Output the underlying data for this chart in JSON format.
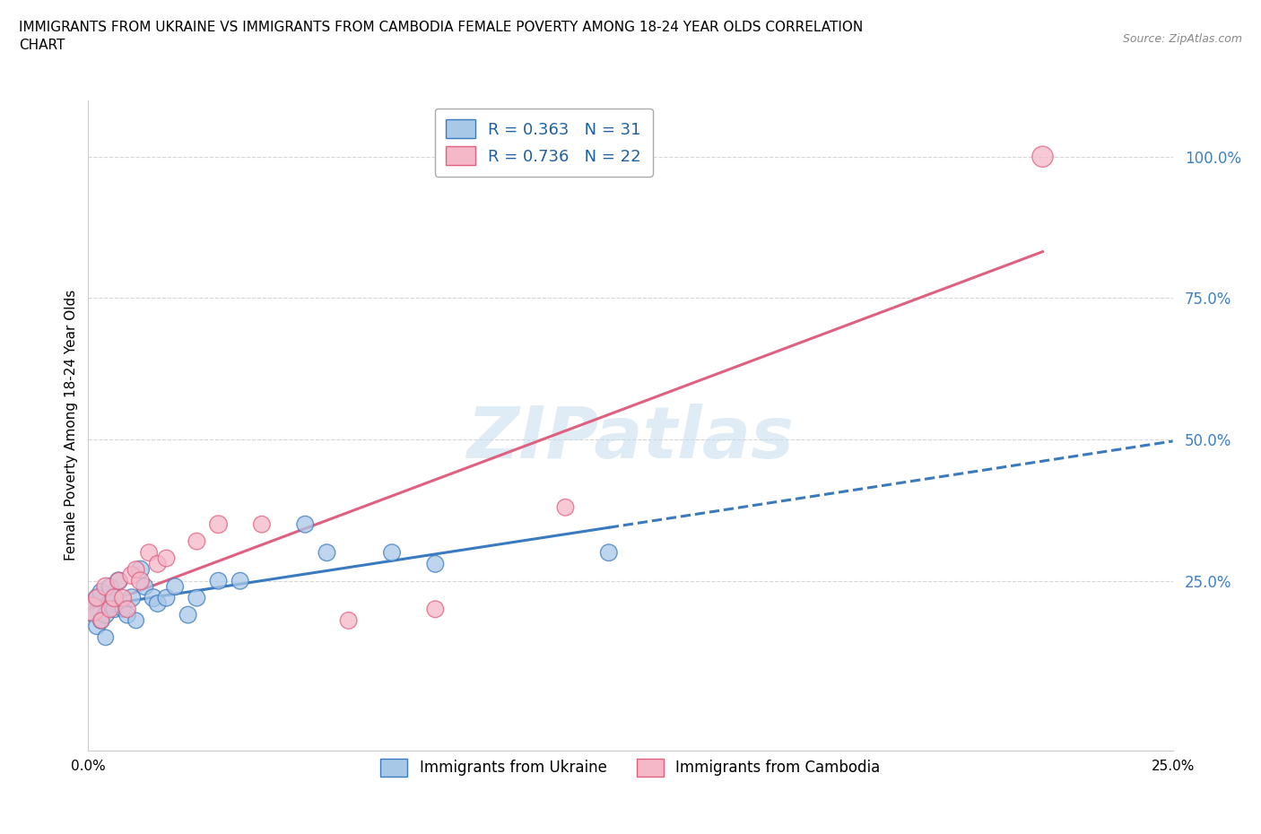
{
  "title": "IMMIGRANTS FROM UKRAINE VS IMMIGRANTS FROM CAMBODIA FEMALE POVERTY AMONG 18-24 YEAR OLDS CORRELATION\nCHART",
  "source_text": "Source: ZipAtlas.com",
  "ylabel": "Female Poverty Among 18-24 Year Olds",
  "watermark": "ZIPatlas",
  "ukraine_color": "#a8c8e8",
  "cambodia_color": "#f4b8c8",
  "ukraine_line_color": "#3a7abf",
  "cambodia_line_color": "#e06080",
  "legend_text_color": "#2060a0",
  "ytick_color": "#4080c0",
  "R_ukraine": 0.363,
  "N_ukraine": 31,
  "R_cambodia": 0.736,
  "N_cambodia": 22,
  "ukraine_x": [
    0.001,
    0.002,
    0.002,
    0.003,
    0.003,
    0.004,
    0.004,
    0.005,
    0.005,
    0.006,
    0.006,
    0.007,
    0.008,
    0.009,
    0.01,
    0.011,
    0.012,
    0.013,
    0.015,
    0.016,
    0.018,
    0.02,
    0.023,
    0.025,
    0.03,
    0.035,
    0.05,
    0.055,
    0.07,
    0.08,
    0.12
  ],
  "ukraine_y": [
    0.2,
    0.17,
    0.22,
    0.18,
    0.23,
    0.19,
    0.15,
    0.21,
    0.24,
    0.22,
    0.2,
    0.25,
    0.2,
    0.19,
    0.22,
    0.18,
    0.27,
    0.24,
    0.22,
    0.21,
    0.22,
    0.24,
    0.19,
    0.22,
    0.25,
    0.25,
    0.35,
    0.3,
    0.3,
    0.28,
    0.3
  ],
  "ukraine_sizes": [
    400,
    180,
    200,
    180,
    200,
    180,
    160,
    200,
    180,
    200,
    180,
    200,
    160,
    180,
    200,
    160,
    200,
    180,
    200,
    180,
    180,
    180,
    180,
    180,
    180,
    180,
    180,
    180,
    180,
    180,
    180
  ],
  "cambodia_x": [
    0.001,
    0.002,
    0.003,
    0.004,
    0.005,
    0.006,
    0.007,
    0.008,
    0.009,
    0.01,
    0.011,
    0.012,
    0.014,
    0.016,
    0.018,
    0.025,
    0.03,
    0.04,
    0.06,
    0.08,
    0.11,
    0.22
  ],
  "cambodia_y": [
    0.2,
    0.22,
    0.18,
    0.24,
    0.2,
    0.22,
    0.25,
    0.22,
    0.2,
    0.26,
    0.27,
    0.25,
    0.3,
    0.28,
    0.29,
    0.32,
    0.35,
    0.35,
    0.18,
    0.2,
    0.38,
    1.0
  ],
  "cambodia_sizes": [
    350,
    180,
    160,
    200,
    180,
    200,
    180,
    180,
    180,
    200,
    180,
    200,
    180,
    180,
    180,
    180,
    200,
    180,
    180,
    180,
    180,
    280
  ],
  "xlim": [
    0.0,
    0.25
  ],
  "ylim": [
    -0.05,
    1.1
  ],
  "yticks": [
    0.25,
    0.5,
    0.75,
    1.0
  ],
  "ytick_labels": [
    "25.0%",
    "50.0%",
    "75.0%",
    "100.0%"
  ],
  "xticks": [
    0.0,
    0.0625,
    0.125,
    0.1875,
    0.25
  ],
  "xtick_labels": [
    "0.0%",
    "",
    "",
    "",
    "25.0%"
  ]
}
